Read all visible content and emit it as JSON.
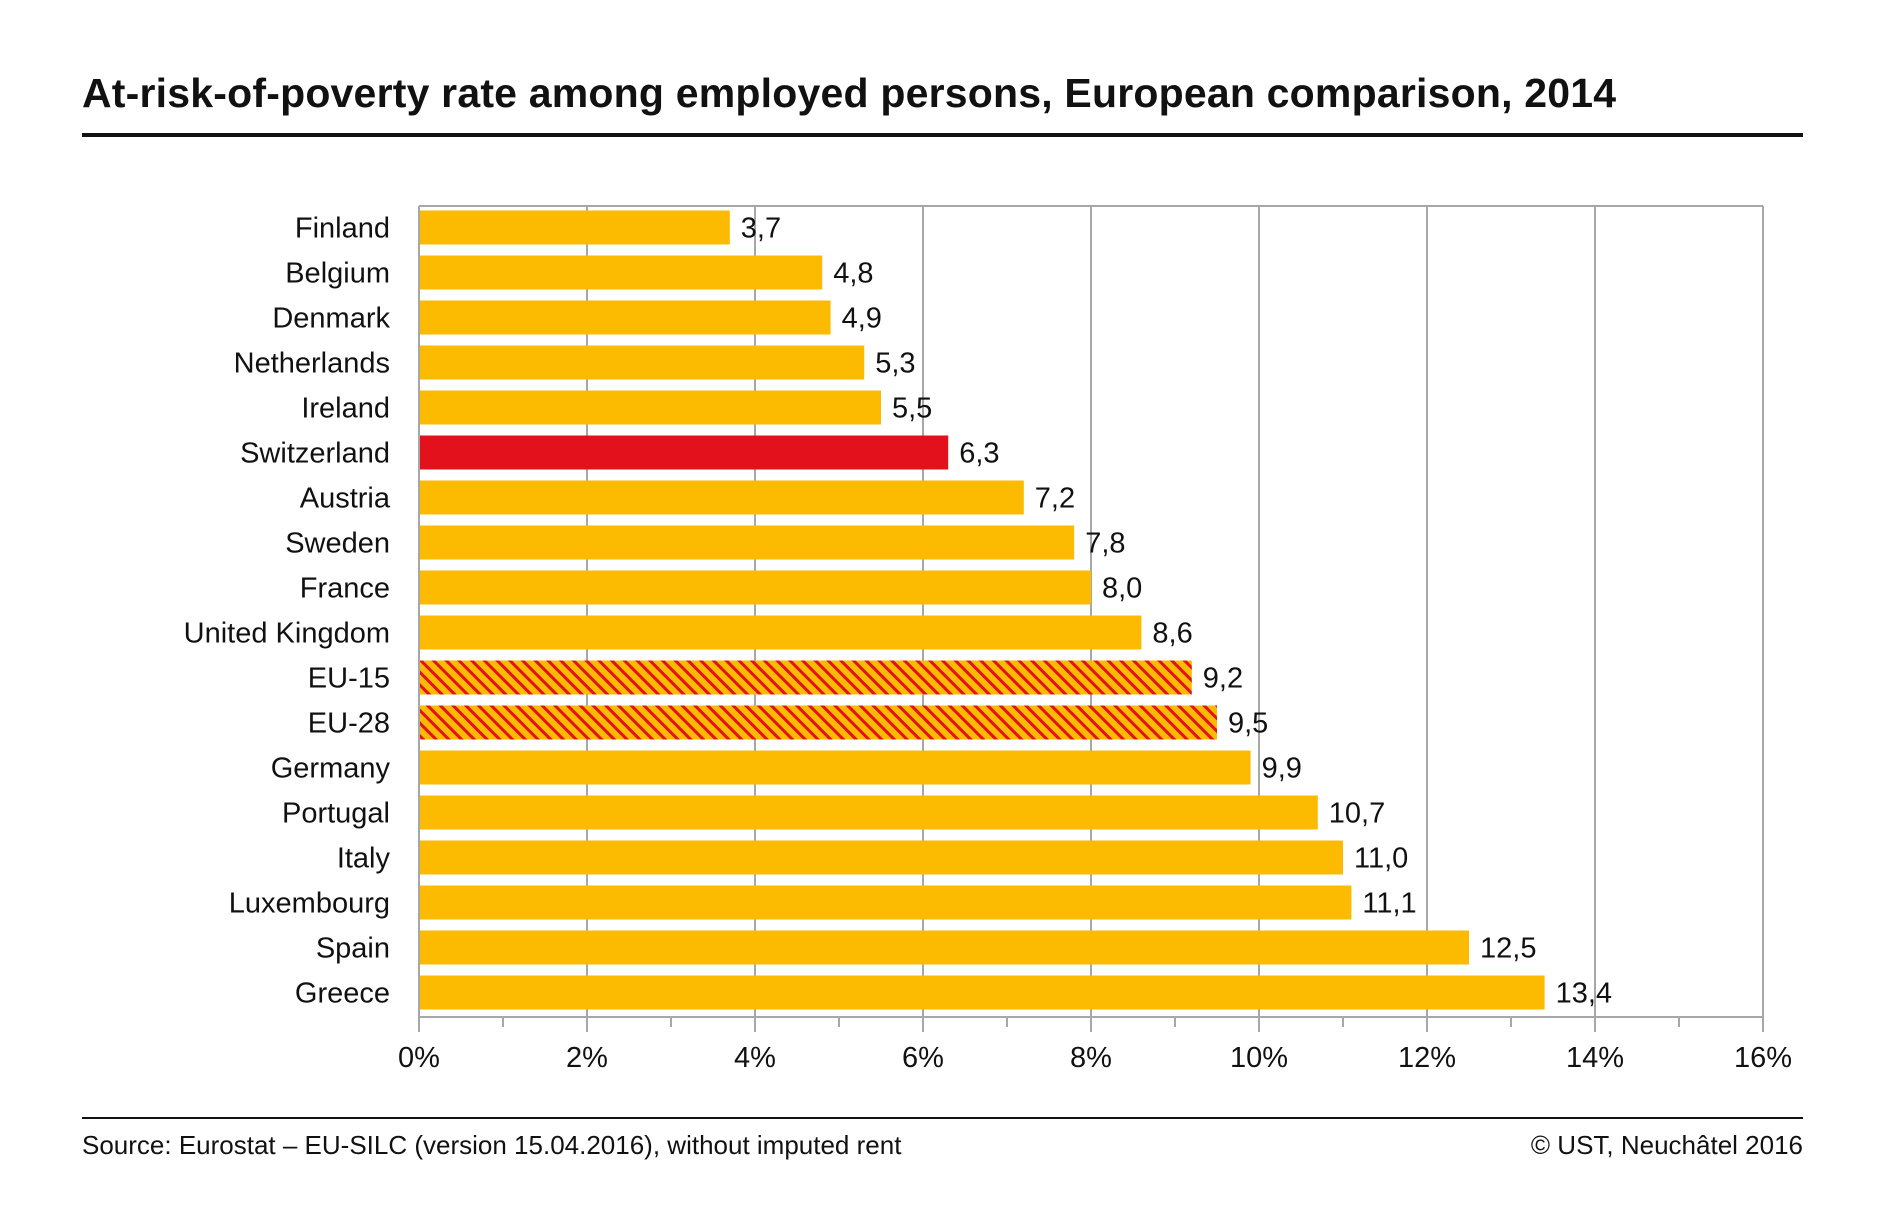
{
  "header": {
    "title": "At-risk-of-poverty rate among employed persons, European comparison, 2014"
  },
  "footer": {
    "source": "Source: Eurostat – EU-SILC (version 15.04.2016), without imputed rent",
    "copyright": "© UST, Neuchâtel 2016"
  },
  "colors": {
    "default_bar": "#fcbb00",
    "highlight_bar": "#e3111b",
    "hatch_stripe": "#e3111b",
    "grid": "#a7a7a7"
  },
  "chart_data": {
    "type": "bar",
    "orientation": "horizontal",
    "categories": [
      "Finland",
      "Belgium",
      "Denmark",
      "Netherlands",
      "Ireland",
      "Switzerland",
      "Austria",
      "Sweden",
      "France",
      "United Kingdom",
      "EU-15",
      "EU-28",
      "Germany",
      "Portugal",
      "Italy",
      "Luxembourg",
      "Spain",
      "Greece"
    ],
    "values": [
      3.7,
      4.8,
      4.9,
      5.3,
      5.5,
      6.3,
      7.2,
      7.8,
      8.0,
      8.6,
      9.2,
      9.5,
      9.9,
      10.7,
      11.0,
      11.1,
      12.5,
      13.4
    ],
    "value_labels": [
      "3,7",
      "4,8",
      "4,9",
      "5,3",
      "5,5",
      "6,3",
      "7,2",
      "7,8",
      "8,0",
      "8,6",
      "9,2",
      "9,5",
      "9,9",
      "10,7",
      "11,0",
      "11,1",
      "12,5",
      "13,4"
    ],
    "bar_styles": [
      "default",
      "default",
      "default",
      "default",
      "default",
      "highlight",
      "default",
      "default",
      "default",
      "default",
      "hatched",
      "hatched",
      "default",
      "default",
      "default",
      "default",
      "default",
      "default"
    ],
    "xlim": [
      0,
      16
    ],
    "xticks": [
      0,
      2,
      4,
      6,
      8,
      10,
      12,
      14,
      16
    ],
    "xtick_labels": [
      "0%",
      "2%",
      "4%",
      "6%",
      "8%",
      "10%",
      "12%",
      "14%",
      "16%"
    ],
    "xminor_step": 1,
    "grid": true,
    "legend": false
  }
}
